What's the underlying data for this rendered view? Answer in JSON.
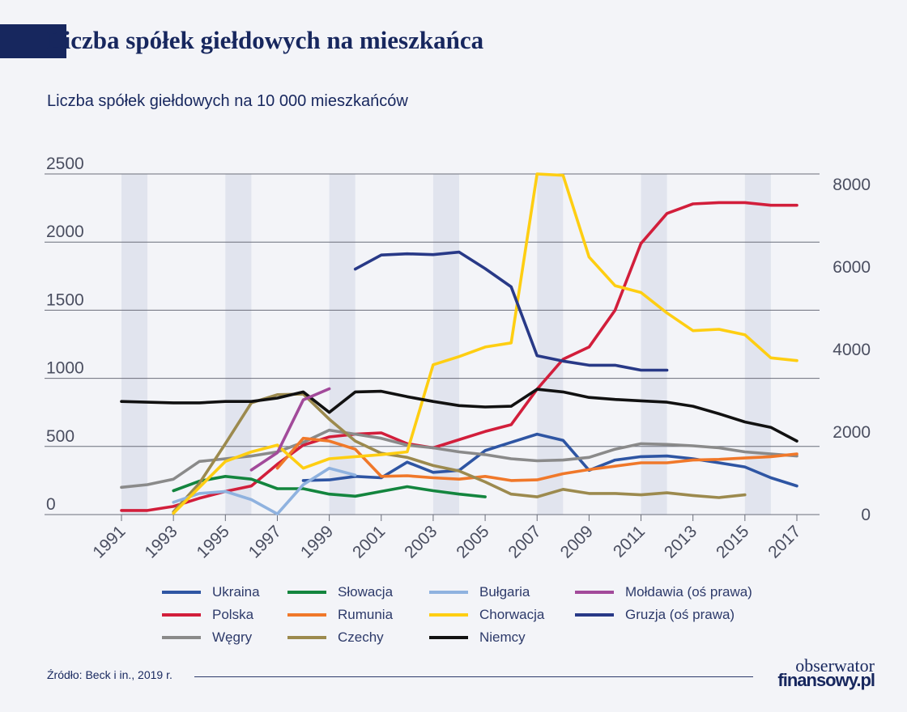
{
  "header": {
    "title": "Liczba spółek giełdowych na mieszkańca",
    "subtitle": "Liczba spółek giełdowych na 10 000 mieszkańców"
  },
  "footer": {
    "source": "Źródło: Beck i in., 2019 r.",
    "brand_line1": "obserwator",
    "brand_line2": "finansowy.pl"
  },
  "colors": {
    "navy": "#17275e",
    "band": "#e1e4ee",
    "grid": "#6b6e7a"
  },
  "chart_data": {
    "type": "line",
    "x_ticks": [
      1991,
      1993,
      1995,
      1997,
      1999,
      2001,
      2003,
      2005,
      2007,
      2009,
      2011,
      2013,
      2015,
      2017
    ],
    "xlim": [
      1991,
      2017
    ],
    "left_axis": {
      "ylim": [
        0,
        2500
      ],
      "ticks": [
        0,
        500,
        1000,
        1500,
        2000,
        2500
      ]
    },
    "right_axis": {
      "ylim": [
        0,
        8000
      ],
      "ticks": [
        0,
        2000,
        4000,
        6000,
        8000
      ]
    },
    "shaded_bands": [
      [
        1991,
        1992
      ],
      [
        1995,
        1996
      ],
      [
        1999,
        2000
      ],
      [
        2003,
        2004
      ],
      [
        2007,
        2008
      ],
      [
        2011,
        2012
      ],
      [
        2015,
        2016
      ]
    ],
    "series": [
      {
        "name": "Ukraina",
        "color": "#2e55a3",
        "axis": "left",
        "x": [
          1998,
          1999,
          2000,
          2001,
          2002,
          2003,
          2004,
          2005,
          2006,
          2007,
          2008,
          2009,
          2010,
          2011,
          2012,
          2013,
          2014,
          2015,
          2016,
          2017
        ],
        "y": [
          250,
          255,
          280,
          270,
          385,
          310,
          325,
          470,
          530,
          590,
          545,
          325,
          400,
          425,
          430,
          410,
          380,
          350,
          270,
          210
        ]
      },
      {
        "name": "Polska",
        "color": "#d21e3b",
        "axis": "left",
        "x": [
          1991,
          1992,
          1993,
          1994,
          1995,
          1996,
          1997,
          1998,
          1999,
          2000,
          2001,
          2002,
          2003,
          2004,
          2005,
          2006,
          2007,
          2008,
          2009,
          2010,
          2011,
          2012,
          2013,
          2014,
          2015,
          2016,
          2017
        ],
        "y": [
          30,
          30,
          60,
          120,
          170,
          210,
          370,
          510,
          570,
          590,
          600,
          520,
          490,
          550,
          610,
          660,
          920,
          1140,
          1230,
          1500,
          1990,
          2210,
          2280,
          2290,
          2290,
          2270,
          2270
        ]
      },
      {
        "name": "Węgry",
        "color": "#8a8a8a",
        "axis": "left",
        "x": [
          1991,
          1992,
          1993,
          1994,
          1995,
          1996,
          1997,
          1998,
          1999,
          2000,
          2001,
          2002,
          2003,
          2004,
          2005,
          2006,
          2007,
          2008,
          2009,
          2010,
          2011,
          2012,
          2013,
          2014,
          2015,
          2016,
          2017
        ],
        "y": [
          200,
          220,
          260,
          390,
          410,
          430,
          460,
          530,
          620,
          590,
          560,
          510,
          490,
          460,
          440,
          410,
          395,
          400,
          420,
          480,
          520,
          515,
          505,
          490,
          460,
          445,
          430
        ]
      },
      {
        "name": "Słowacja",
        "color": "#13853e",
        "axis": "left",
        "x": [
          1993,
          1994,
          1995,
          1996,
          1997,
          1998,
          1999,
          2000,
          2001,
          2002,
          2003,
          2004,
          2005
        ],
        "y": [
          175,
          245,
          280,
          260,
          190,
          190,
          150,
          135,
          170,
          205,
          175,
          150,
          130
        ]
      },
      {
        "name": "Rumunia",
        "color": "#f0782a",
        "axis": "left",
        "x": [
          1997,
          1998,
          1999,
          2000,
          2001,
          2002,
          2003,
          2004,
          2005,
          2006,
          2007,
          2008,
          2009,
          2010,
          2011,
          2012,
          2013,
          2014,
          2015,
          2016,
          2017
        ],
        "y": [
          340,
          560,
          540,
          480,
          280,
          285,
          270,
          260,
          280,
          250,
          255,
          300,
          330,
          355,
          380,
          380,
          400,
          405,
          415,
          425,
          445
        ]
      },
      {
        "name": "Czechy",
        "color": "#9c8a4e",
        "axis": "left",
        "x": [
          1993,
          1994,
          1995,
          1996,
          1997,
          1998,
          1999,
          2000,
          2001,
          2002,
          2003,
          2004,
          2005,
          2006,
          2007,
          2008,
          2009,
          2010,
          2011,
          2012,
          2013,
          2014,
          2015
        ],
        "y": [
          20,
          230,
          520,
          820,
          880,
          885,
          700,
          540,
          450,
          420,
          360,
          320,
          240,
          150,
          130,
          185,
          155,
          155,
          145,
          160,
          140,
          125,
          145
        ]
      },
      {
        "name": "Bułgaria",
        "color": "#8fb2df",
        "axis": "left",
        "x": [
          1993,
          1994,
          1995,
          1996,
          1997,
          1998,
          1999,
          2000
        ],
        "y": [
          90,
          155,
          170,
          110,
          5,
          220,
          340,
          290
        ]
      },
      {
        "name": "Chorwacja",
        "color": "#fece12",
        "axis": "left",
        "x": [
          1993,
          1994,
          1995,
          1996,
          1997,
          1998,
          1999,
          2000,
          2001,
          2002,
          2003,
          2004,
          2005,
          2006,
          2007,
          2008,
          2009,
          2010,
          2011,
          2012,
          2013,
          2014,
          2015,
          2016,
          2017
        ],
        "y": [
          10,
          200,
          390,
          460,
          510,
          340,
          410,
          425,
          440,
          460,
          1100,
          1160,
          1230,
          1260,
          2500,
          2490,
          1890,
          1680,
          1630,
          1480,
          1350,
          1360,
          1320,
          1150,
          1130
        ]
      },
      {
        "name": "Niemcy",
        "color": "#111111",
        "axis": "left",
        "x": [
          1991,
          1992,
          1993,
          1994,
          1995,
          1996,
          1997,
          1998,
          1999,
          2000,
          2001,
          2002,
          2003,
          2004,
          2005,
          2006,
          2007,
          2008,
          2009,
          2010,
          2011,
          2012,
          2013,
          2014,
          2015,
          2016,
          2017
        ],
        "y": [
          830,
          825,
          820,
          820,
          830,
          830,
          855,
          900,
          750,
          900,
          905,
          865,
          830,
          800,
          790,
          795,
          920,
          900,
          860,
          845,
          835,
          825,
          795,
          740,
          680,
          640,
          540
        ]
      },
      {
        "name": "Mołdawia (oś prawa)",
        "color": "#a24a9a",
        "axis": "right",
        "x": [
          1996,
          1997,
          1998,
          1999
        ],
        "y": [
          1080,
          1500,
          2780,
          3050
        ]
      },
      {
        "name": "Gruzja (oś prawa)",
        "color": "#283987",
        "axis": "right",
        "x": [
          2000,
          2001,
          2002,
          2003,
          2004,
          2005,
          2006,
          2007,
          2008,
          2009,
          2010,
          2011,
          2012
        ],
        "y": [
          5950,
          6290,
          6320,
          6300,
          6360,
          5960,
          5520,
          3850,
          3720,
          3620,
          3620,
          3500,
          3500
        ]
      }
    ],
    "legend_order": [
      "Ukraina",
      "Słowacja",
      "Bułgaria",
      "Mołdawia (oś prawa)",
      "Polska",
      "Rumunia",
      "Chorwacja",
      "Gruzja (oś prawa)",
      "Węgry",
      "Czechy",
      "Niemcy"
    ]
  }
}
